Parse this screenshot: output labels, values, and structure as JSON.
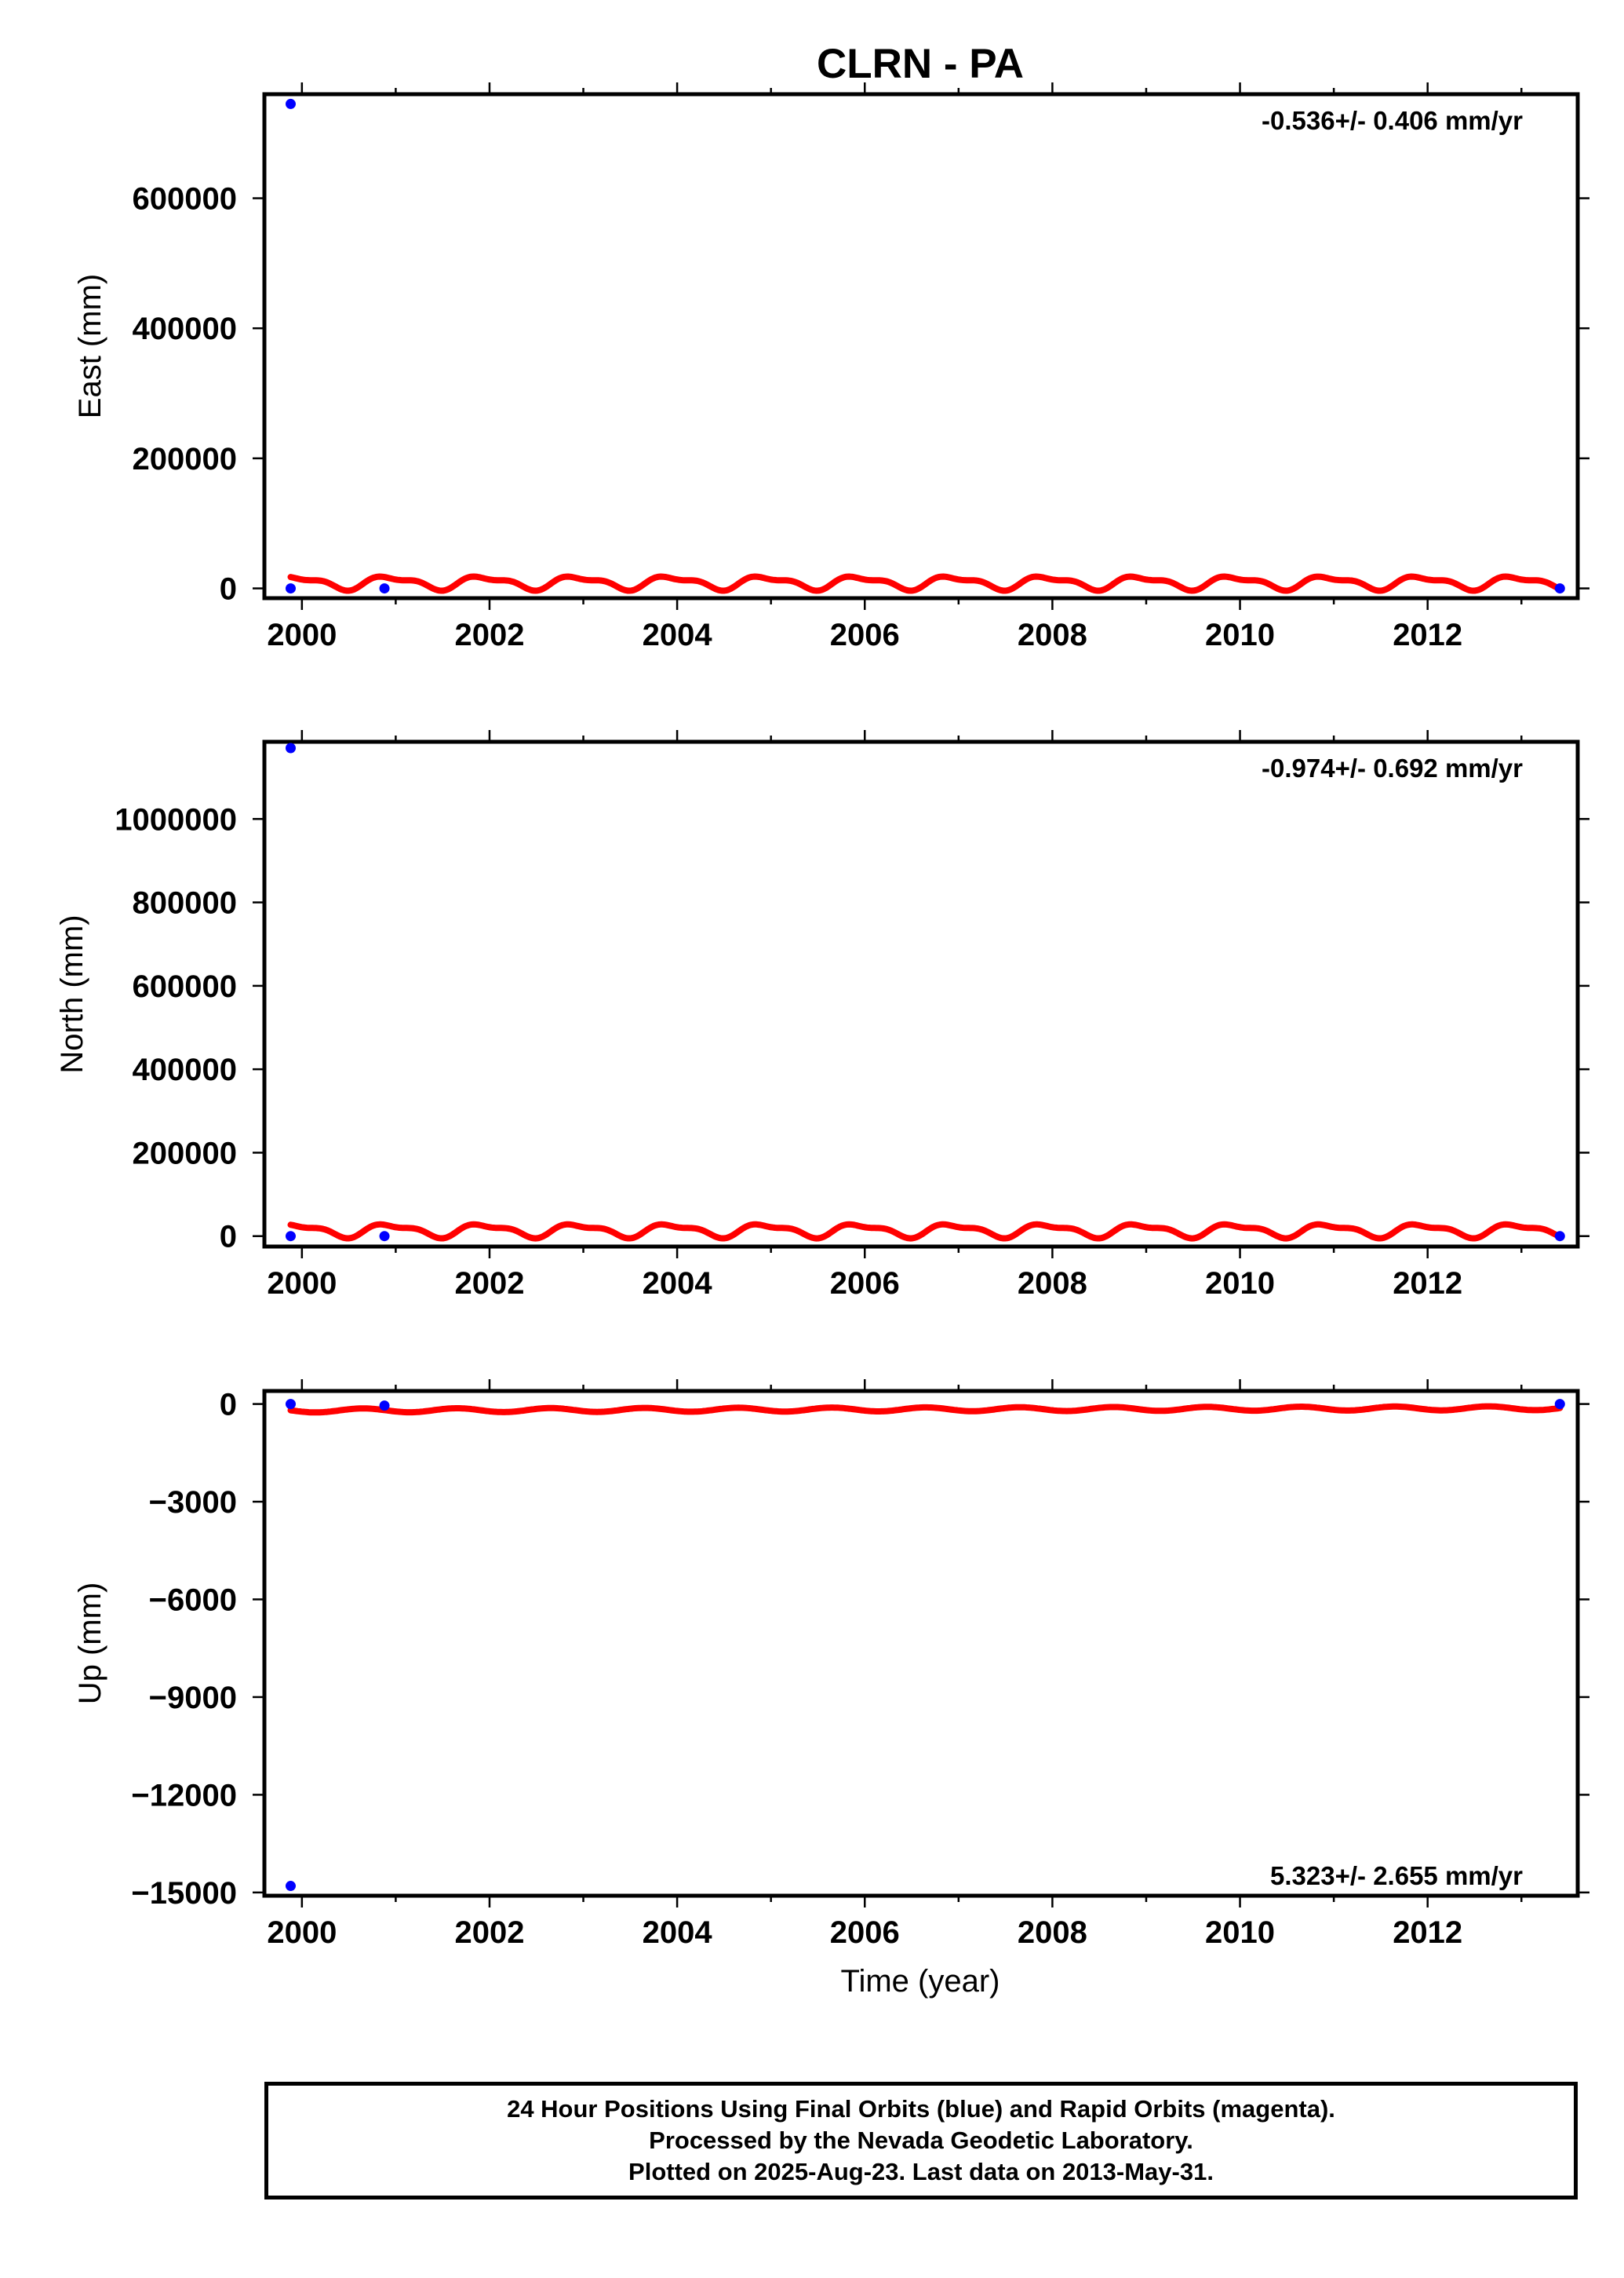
{
  "title": "CLRN - PA",
  "colors": {
    "final_orbits": "#0000ff",
    "model_fit": "#ff0000",
    "axes": "#000000"
  },
  "chart_data": [
    {
      "type": "scatter",
      "id": "east",
      "ylabel": "East (mm)",
      "xlim": [
        1999.6,
        2013.6
      ],
      "ylim": [
        -15000,
        760000
      ],
      "xticks": [
        2000,
        2002,
        2004,
        2006,
        2008,
        2010,
        2012
      ],
      "xtick_labels": [
        "2000",
        "2002",
        "2004",
        "2006",
        "2008",
        "2010",
        "2012"
      ],
      "yticks": [
        0,
        200000,
        400000,
        600000
      ],
      "ytick_labels": [
        "0",
        "200000",
        "400000",
        "600000"
      ],
      "rate_label": "-0.536+/- 0.406 mm/yr",
      "rate_position": "top-right",
      "points": [
        {
          "x": 1999.88,
          "y": 745000
        },
        {
          "x": 1999.88,
          "y": 0
        },
        {
          "x": 2000.88,
          "y": 0
        },
        {
          "x": 2013.41,
          "y": 0
        }
      ],
      "fit": {
        "x0": 1999.88,
        "x1": 2013.41,
        "base": 9000,
        "slope": -0.536,
        "annual_amp": 9000,
        "semiannual_amp": 4000,
        "phase": 0.3
      }
    },
    {
      "type": "scatter",
      "id": "north",
      "ylabel": "North (mm)",
      "xlim": [
        1999.6,
        2013.6
      ],
      "ylim": [
        -25000,
        1185000
      ],
      "xticks": [
        2000,
        2002,
        2004,
        2006,
        2008,
        2010,
        2012
      ],
      "xtick_labels": [
        "2000",
        "2002",
        "2004",
        "2006",
        "2008",
        "2010",
        "2012"
      ],
      "yticks": [
        0,
        200000,
        400000,
        600000,
        800000,
        1000000
      ],
      "ytick_labels": [
        "0",
        "200000",
        "400000",
        "600000",
        "800000",
        "1000000"
      ],
      "rate_label": "-0.974+/- 0.692 mm/yr",
      "rate_position": "top-right",
      "points": [
        {
          "x": 1999.88,
          "y": 1170000
        },
        {
          "x": 1999.88,
          "y": 0
        },
        {
          "x": 2000.88,
          "y": 0
        },
        {
          "x": 2013.41,
          "y": 0
        }
      ],
      "fit": {
        "x0": 1999.88,
        "x1": 2013.41,
        "base": 14000,
        "slope": -0.974,
        "annual_amp": 14000,
        "semiannual_amp": 6000,
        "phase": 0.3
      }
    },
    {
      "type": "scatter",
      "id": "up",
      "ylabel": "Up (mm)",
      "xlim": [
        1999.6,
        2013.6
      ],
      "ylim": [
        -15100,
        400
      ],
      "xticks": [
        2000,
        2002,
        2004,
        2006,
        2008,
        2010,
        2012
      ],
      "xtick_labels": [
        "2000",
        "2002",
        "2004",
        "2006",
        "2008",
        "2010",
        "2012"
      ],
      "yticks": [
        0,
        -3000,
        -6000,
        -9000,
        -12000,
        -15000
      ],
      "ytick_labels": [
        "0",
        "−3000",
        "−6000",
        "−9000",
        "−12000",
        "−15000"
      ],
      "rate_label": "5.323+/- 2.655 mm/yr",
      "rate_position": "bottom-right",
      "points": [
        {
          "x": 1999.88,
          "y": 0
        },
        {
          "x": 1999.88,
          "y": -14800
        },
        {
          "x": 2000.88,
          "y": -50
        },
        {
          "x": 2013.41,
          "y": 0
        }
      ],
      "fit": {
        "x0": 1999.88,
        "x1": 2013.41,
        "base": -200,
        "slope": 5.323,
        "annual_amp": 60,
        "semiannual_amp": 0,
        "phase": 0.6
      }
    }
  ],
  "xlabel": "Time (year)",
  "footer": {
    "line1": "24 Hour Positions Using Final Orbits (blue) and Rapid Orbits (magenta).",
    "line2": "Processed by the Nevada Geodetic Laboratory.",
    "line3": "Plotted on 2025-Aug-23. Last data on 2013-May-31."
  }
}
